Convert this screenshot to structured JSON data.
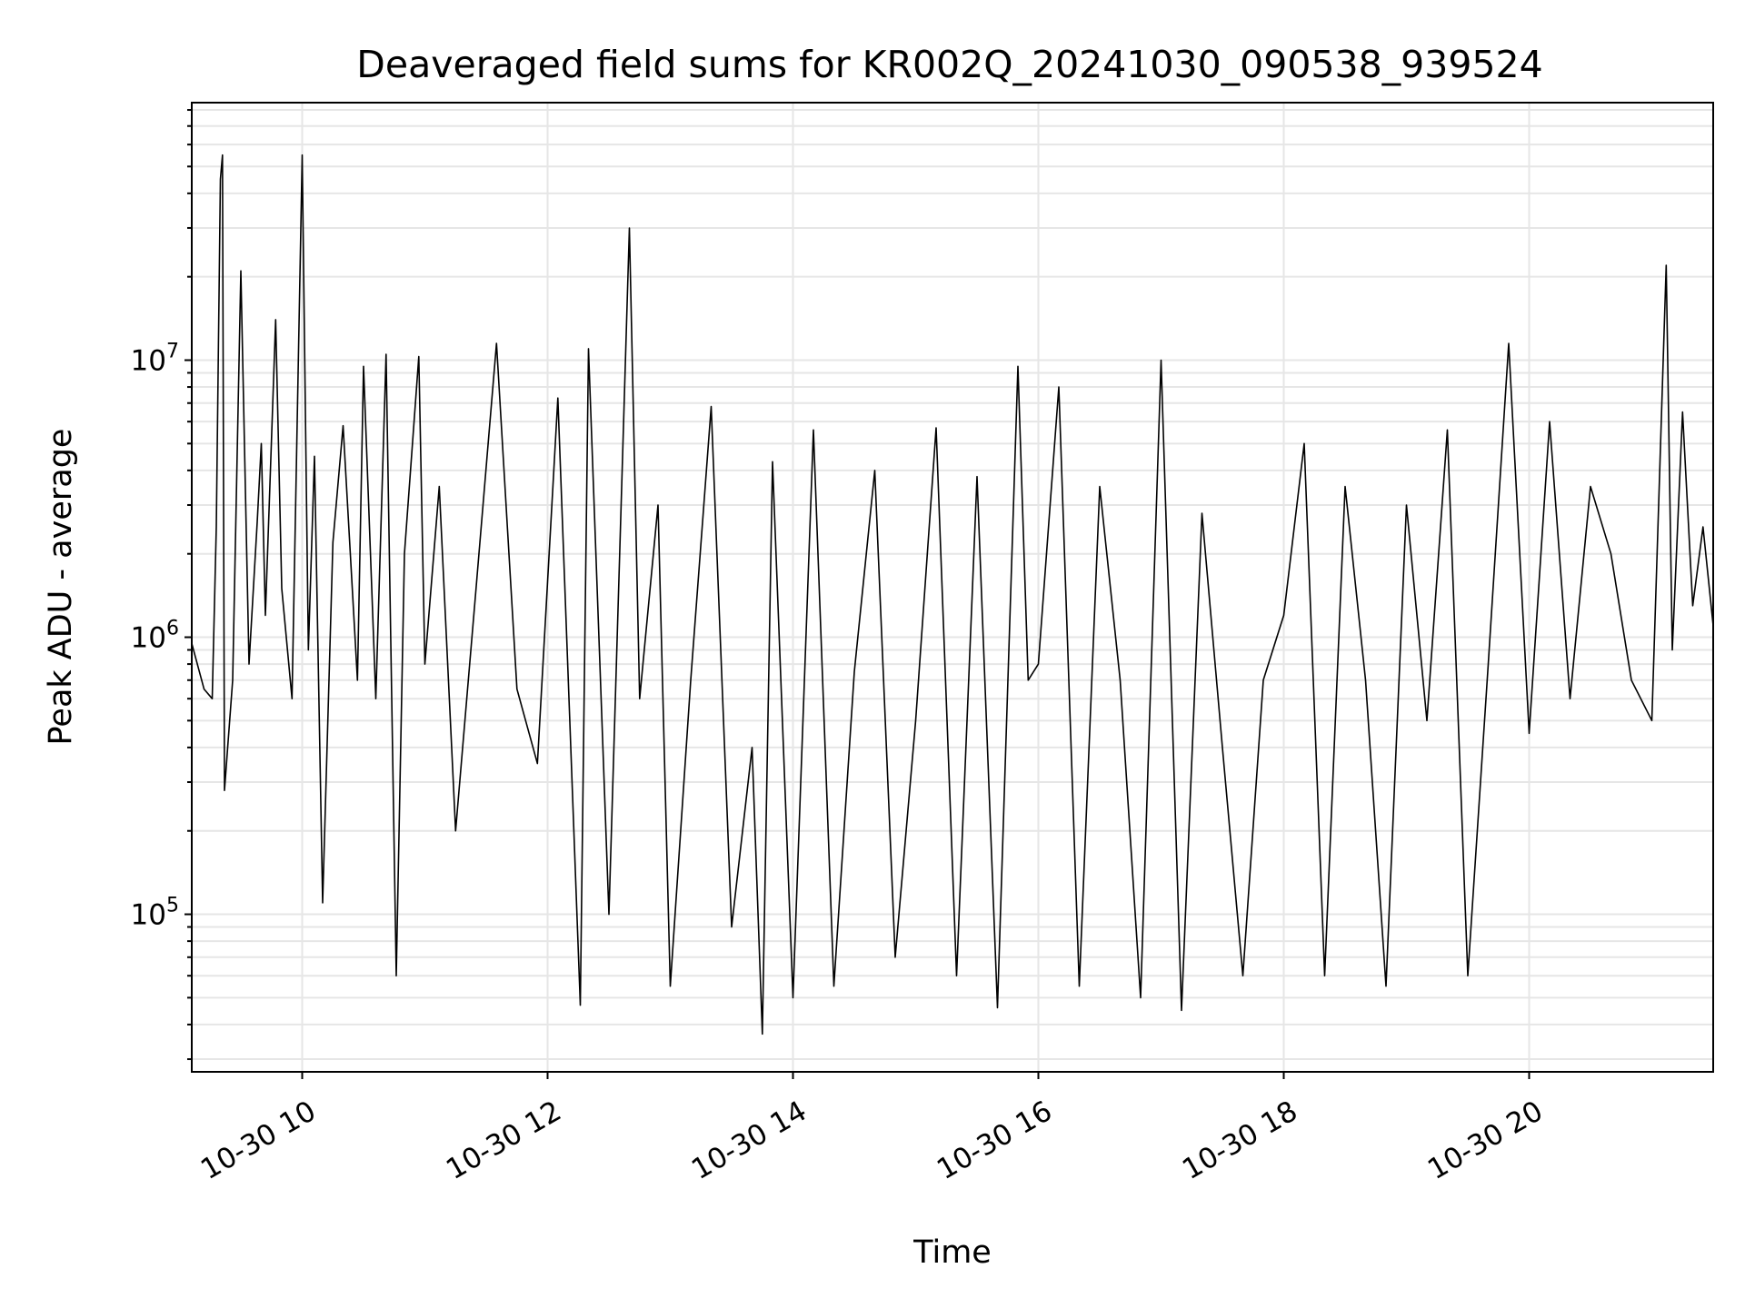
{
  "chart_data": {
    "type": "line",
    "title": "Deaveraged field sums for KR002Q_20241030_090538_939524",
    "xlabel": "Time",
    "ylabel": "Peak ADU - average",
    "yscale": "log",
    "ylim": [
      27000,
      85000000
    ],
    "xlim": [
      "2024-10-30 09:06",
      "2024-10-30 21:30"
    ],
    "grid": true,
    "line_color": "#000000",
    "x_tick_labels": [
      "10-30 10",
      "10-30 12",
      "10-30 14",
      "10-30 16",
      "10-30 18",
      "10-30 20"
    ],
    "x_tick_times": [
      "2024-10-30 10:00",
      "2024-10-30 12:00",
      "2024-10-30 14:00",
      "2024-10-30 16:00",
      "2024-10-30 18:00",
      "2024-10-30 20:00"
    ],
    "y_tick_labels": [
      {
        "base": "10",
        "exp": "5",
        "value": 100000
      },
      {
        "base": "10",
        "exp": "6",
        "value": 1000000
      },
      {
        "base": "10",
        "exp": "7",
        "value": 10000000
      }
    ],
    "series": [
      {
        "x": [
          "2024-10-30 09:06",
          "2024-10-30 09:12",
          "2024-10-30 09:16",
          "2024-10-30 09:18",
          "2024-10-30 09:20",
          "2024-10-30 09:21",
          "2024-10-30 09:22",
          "2024-10-30 09:26",
          "2024-10-30 09:30",
          "2024-10-30 09:34",
          "2024-10-30 09:38",
          "2024-10-30 09:40",
          "2024-10-30 09:42",
          "2024-10-30 09:47",
          "2024-10-30 09:50",
          "2024-10-30 09:55",
          "2024-10-30 10:00",
          "2024-10-30 10:03",
          "2024-10-30 10:06",
          "2024-10-30 10:10",
          "2024-10-30 10:15",
          "2024-10-30 10:20",
          "2024-10-30 10:27",
          "2024-10-30 10:30",
          "2024-10-30 10:36",
          "2024-10-30 10:41",
          "2024-10-30 10:46",
          "2024-10-30 10:50",
          "2024-10-30 10:57",
          "2024-10-30 11:00",
          "2024-10-30 11:07",
          "2024-10-30 11:15",
          "2024-10-30 11:25",
          "2024-10-30 11:35",
          "2024-10-30 11:45",
          "2024-10-30 11:55",
          "2024-10-30 12:05",
          "2024-10-30 12:16",
          "2024-10-30 12:20",
          "2024-10-30 12:30",
          "2024-10-30 12:40",
          "2024-10-30 12:45",
          "2024-10-30 12:54",
          "2024-10-30 13:00",
          "2024-10-30 13:10",
          "2024-10-30 13:20",
          "2024-10-30 13:30",
          "2024-10-30 13:40",
          "2024-10-30 13:45",
          "2024-10-30 13:50",
          "2024-10-30 14:00",
          "2024-10-30 14:10",
          "2024-10-30 14:20",
          "2024-10-30 14:30",
          "2024-10-30 14:40",
          "2024-10-30 14:50",
          "2024-10-30 15:00",
          "2024-10-30 15:10",
          "2024-10-30 15:20",
          "2024-10-30 15:30",
          "2024-10-30 15:40",
          "2024-10-30 15:50",
          "2024-10-30 15:55",
          "2024-10-30 16:00",
          "2024-10-30 16:10",
          "2024-10-30 16:20",
          "2024-10-30 16:30",
          "2024-10-30 16:40",
          "2024-10-30 16:50",
          "2024-10-30 17:00",
          "2024-10-30 17:10",
          "2024-10-30 17:20",
          "2024-10-30 17:30",
          "2024-10-30 17:40",
          "2024-10-30 17:50",
          "2024-10-30 18:00",
          "2024-10-30 18:10",
          "2024-10-30 18:20",
          "2024-10-30 18:30",
          "2024-10-30 18:40",
          "2024-10-30 18:50",
          "2024-10-30 19:00",
          "2024-10-30 19:10",
          "2024-10-30 19:20",
          "2024-10-30 19:30",
          "2024-10-30 19:40",
          "2024-10-30 19:50",
          "2024-10-30 20:00",
          "2024-10-30 20:10",
          "2024-10-30 20:20",
          "2024-10-30 20:30",
          "2024-10-30 20:40",
          "2024-10-30 20:50",
          "2024-10-30 21:00",
          "2024-10-30 21:07",
          "2024-10-30 21:10",
          "2024-10-30 21:15",
          "2024-10-30 21:20",
          "2024-10-30 21:25",
          "2024-10-30 21:30"
        ],
        "y": [
          950000,
          650000,
          600000,
          2500000,
          45000000,
          55000000,
          280000,
          700000,
          21000000,
          800000,
          2600000,
          5000000,
          1200000,
          14000000,
          1500000,
          600000,
          55000000,
          900000,
          4500000,
          110000,
          2200000,
          5800000,
          700000,
          9500000,
          600000,
          10500000,
          60000,
          2000000,
          10300000,
          800000,
          3500000,
          200000,
          1500000,
          11500000,
          650000,
          350000,
          7300000,
          47000,
          11000000,
          100000,
          30000000,
          600000,
          3000000,
          55000,
          700000,
          6800000,
          90000,
          400000,
          37000,
          4300000,
          50000,
          5600000,
          55000,
          750000,
          4000000,
          70000,
          500000,
          5700000,
          60000,
          3800000,
          46000,
          9500000,
          700000,
          800000,
          8000000,
          55000,
          3500000,
          700000,
          50000,
          10000000,
          45000,
          2800000,
          400000,
          60000,
          700000,
          1200000,
          5000000,
          60000,
          3500000,
          700000,
          55000,
          3000000,
          500000,
          5600000,
          60000,
          800000,
          11500000,
          450000,
          6000000,
          600000,
          3500000,
          2000000,
          700000,
          500000,
          22000000,
          900000,
          6500000,
          1300000,
          2500000,
          1100000
        ]
      }
    ]
  }
}
